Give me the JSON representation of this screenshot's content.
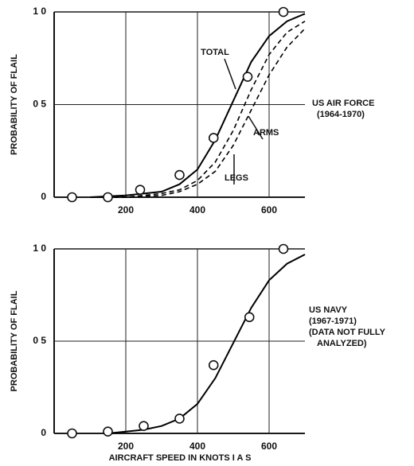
{
  "chart_data": [
    {
      "type": "line",
      "ylabel": "PROBABILITY OF FLAIL",
      "annotations": [
        "US AIR FORCE",
        "(1964-1970)"
      ],
      "xlim": [
        0,
        700
      ],
      "xticks": [
        200,
        400,
        600
      ],
      "ylim": [
        0,
        1
      ],
      "yticks": [
        0,
        {
          "value": 0.5,
          "label": "0 5"
        },
        {
          "value": 1,
          "label": "1 0"
        }
      ],
      "grid": true,
      "points": {
        "x": [
          50,
          150,
          240,
          350,
          445,
          540,
          640
        ],
        "y": [
          0,
          0,
          0.04,
          0.12,
          0.32,
          0.65,
          1.0
        ]
      },
      "series": [
        {
          "name": "TOTAL",
          "color": "#000000",
          "style": "solid",
          "x": [
            100,
            200,
            300,
            350,
            400,
            450,
            500,
            550,
            600,
            650,
            700
          ],
          "values": [
            0,
            0.01,
            0.03,
            0.07,
            0.15,
            0.31,
            0.52,
            0.73,
            0.87,
            0.95,
            0.99
          ]
        },
        {
          "name": "ARMS",
          "color": "#000000",
          "style": "dashed",
          "x": [
            100,
            200,
            300,
            350,
            400,
            450,
            500,
            550,
            600,
            650,
            700
          ],
          "values": [
            0,
            0,
            0.01,
            0.03,
            0.07,
            0.14,
            0.28,
            0.47,
            0.66,
            0.81,
            0.91
          ]
        },
        {
          "name": "LEGS",
          "color": "#000000",
          "style": "dashed",
          "x": [
            100,
            200,
            300,
            350,
            400,
            450,
            500,
            550,
            600,
            650,
            700
          ],
          "values": [
            0,
            0,
            0.02,
            0.04,
            0.09,
            0.19,
            0.36,
            0.58,
            0.77,
            0.89,
            0.95
          ]
        }
      ]
    },
    {
      "type": "line",
      "ylabel": "PROBABILITY OF FLAIL",
      "xlabel": "AIRCRAFT SPEED IN KNOTS I A S",
      "annotations": [
        "US NAVY",
        "(1967-1971)",
        "(DATA NOT FULLY",
        "ANALYZED)"
      ],
      "xlim": [
        0,
        700
      ],
      "xticks": [
        200,
        400,
        600
      ],
      "ylim": [
        0,
        1
      ],
      "yticks": [
        0,
        {
          "value": 0.5,
          "label": "0 5"
        },
        {
          "value": 1,
          "label": "1 0"
        }
      ],
      "grid": true,
      "points": {
        "x": [
          50,
          150,
          250,
          350,
          445,
          545,
          640
        ],
        "y": [
          0,
          0.01,
          0.04,
          0.08,
          0.37,
          0.63,
          1.0
        ]
      },
      "series": [
        {
          "color": "#000000",
          "style": "solid",
          "x": [
            150,
            200,
            250,
            300,
            350,
            400,
            450,
            500,
            550,
            600,
            650,
            700
          ],
          "values": [
            0,
            0.01,
            0.02,
            0.04,
            0.08,
            0.16,
            0.3,
            0.49,
            0.68,
            0.83,
            0.92,
            0.97
          ]
        }
      ]
    }
  ]
}
